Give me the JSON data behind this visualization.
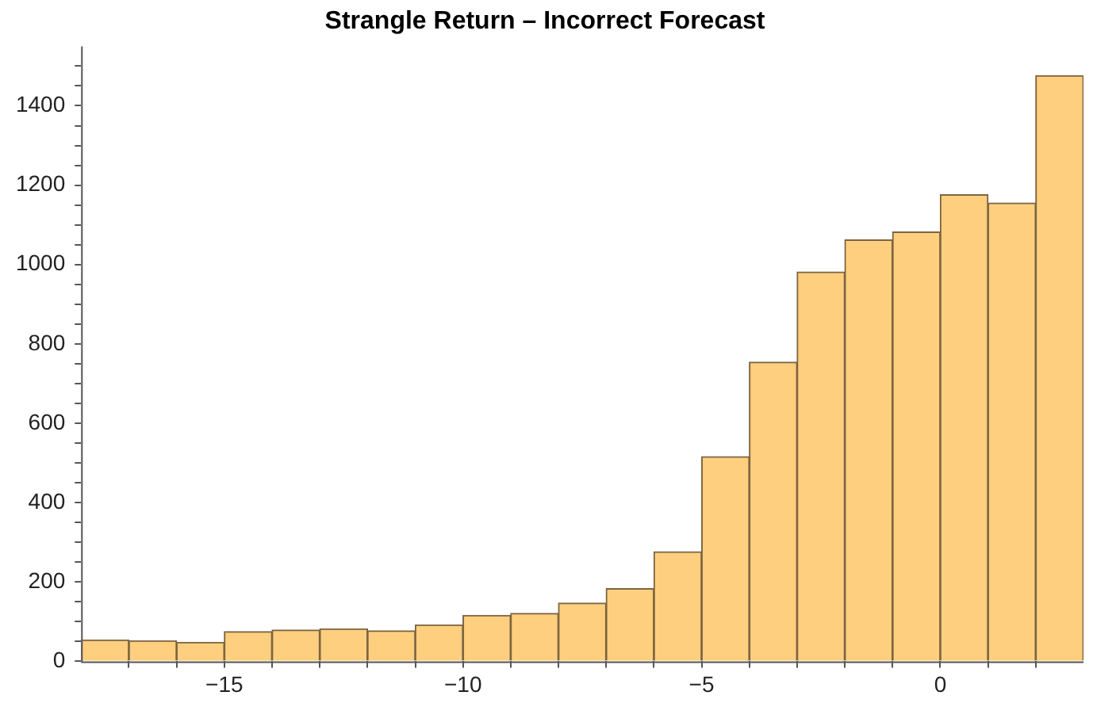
{
  "chart_data": {
    "type": "histogram",
    "title": "Strangle Return – Incorrect Forecast",
    "bins": [
      -18,
      -17,
      -16,
      -15,
      -14,
      -13,
      -12,
      -11,
      -10,
      -9,
      -8,
      -7,
      -6,
      -5,
      -4,
      -3,
      -2,
      -1,
      0,
      1,
      2,
      3
    ],
    "values": [
      54,
      52,
      48,
      75,
      79,
      82,
      77,
      92,
      116,
      121,
      147,
      183,
      276,
      516,
      754,
      981,
      1062,
      1082,
      1176,
      1155,
      1476
    ],
    "color": "#fdcf7f",
    "xlim": [
      -18,
      3
    ],
    "xticks": [
      {
        "value": -17,
        "label": null
      },
      {
        "value": -16,
        "label": null
      },
      {
        "value": -15,
        "label": "−15"
      },
      {
        "value": -14,
        "label": null
      },
      {
        "value": -13,
        "label": null
      },
      {
        "value": -12,
        "label": null
      },
      {
        "value": -11,
        "label": null
      },
      {
        "value": -10,
        "label": "−10"
      },
      {
        "value": -9,
        "label": null
      },
      {
        "value": -8,
        "label": null
      },
      {
        "value": -7,
        "label": null
      },
      {
        "value": -6,
        "label": null
      },
      {
        "value": -5,
        "label": "−5"
      },
      {
        "value": -4,
        "label": null
      },
      {
        "value": -3,
        "label": null
      },
      {
        "value": -2,
        "label": null
      },
      {
        "value": -1,
        "label": null
      },
      {
        "value": 0,
        "label": "0"
      },
      {
        "value": 1,
        "label": null
      },
      {
        "value": 2,
        "label": null
      }
    ],
    "ylim": [
      0,
      1550
    ],
    "yticks": [
      0,
      {
        "value": 50,
        "label": null
      },
      {
        "value": 100,
        "label": null
      },
      {
        "value": 150,
        "label": null
      },
      200,
      {
        "value": 250,
        "label": null
      },
      {
        "value": 300,
        "label": null
      },
      {
        "value": 350,
        "label": null
      },
      400,
      {
        "value": 450,
        "label": null
      },
      {
        "value": 500,
        "label": null
      },
      {
        "value": 550,
        "label": null
      },
      600,
      {
        "value": 650,
        "label": null
      },
      {
        "value": 700,
        "label": null
      },
      {
        "value": 750,
        "label": null
      },
      800,
      {
        "value": 850,
        "label": null
      },
      {
        "value": 900,
        "label": null
      },
      {
        "value": 950,
        "label": null
      },
      1000,
      {
        "value": 1050,
        "label": null
      },
      {
        "value": 1100,
        "label": null
      },
      {
        "value": 1150,
        "label": null
      },
      1200,
      {
        "value": 1250,
        "label": null
      },
      {
        "value": 1300,
        "label": null
      },
      {
        "value": 1350,
        "label": null
      },
      1400,
      {
        "value": 1450,
        "label": null
      },
      {
        "value": 1500,
        "label": null
      }
    ],
    "grid": false,
    "legend": false
  }
}
